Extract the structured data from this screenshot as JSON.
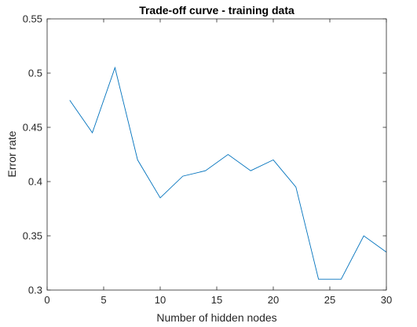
{
  "chart_data": {
    "type": "line",
    "title": "Trade-off curve - training data",
    "xlabel": "Number of hidden nodes",
    "ylabel": "Error rate",
    "xlim": [
      0,
      30
    ],
    "ylim": [
      0.3,
      0.55
    ],
    "xticks": [
      0,
      5,
      10,
      15,
      20,
      25,
      30
    ],
    "yticks": [
      0.3,
      0.35,
      0.4,
      0.45,
      0.5,
      0.55
    ],
    "xtick_labels": [
      "0",
      "5",
      "10",
      "15",
      "20",
      "25",
      "30"
    ],
    "ytick_labels": [
      "0.3",
      "0.35",
      "0.4",
      "0.45",
      "0.5",
      "0.55"
    ],
    "grid": false,
    "line_color": "#0072BD",
    "series": [
      {
        "x": [
          2,
          4,
          6,
          8,
          10,
          12,
          14,
          16,
          18,
          20,
          22,
          24,
          26,
          28,
          30
        ],
        "y": [
          0.475,
          0.445,
          0.505,
          0.42,
          0.385,
          0.405,
          0.41,
          0.425,
          0.41,
          0.42,
          0.395,
          0.31,
          0.31,
          0.35,
          0.335
        ]
      }
    ]
  }
}
